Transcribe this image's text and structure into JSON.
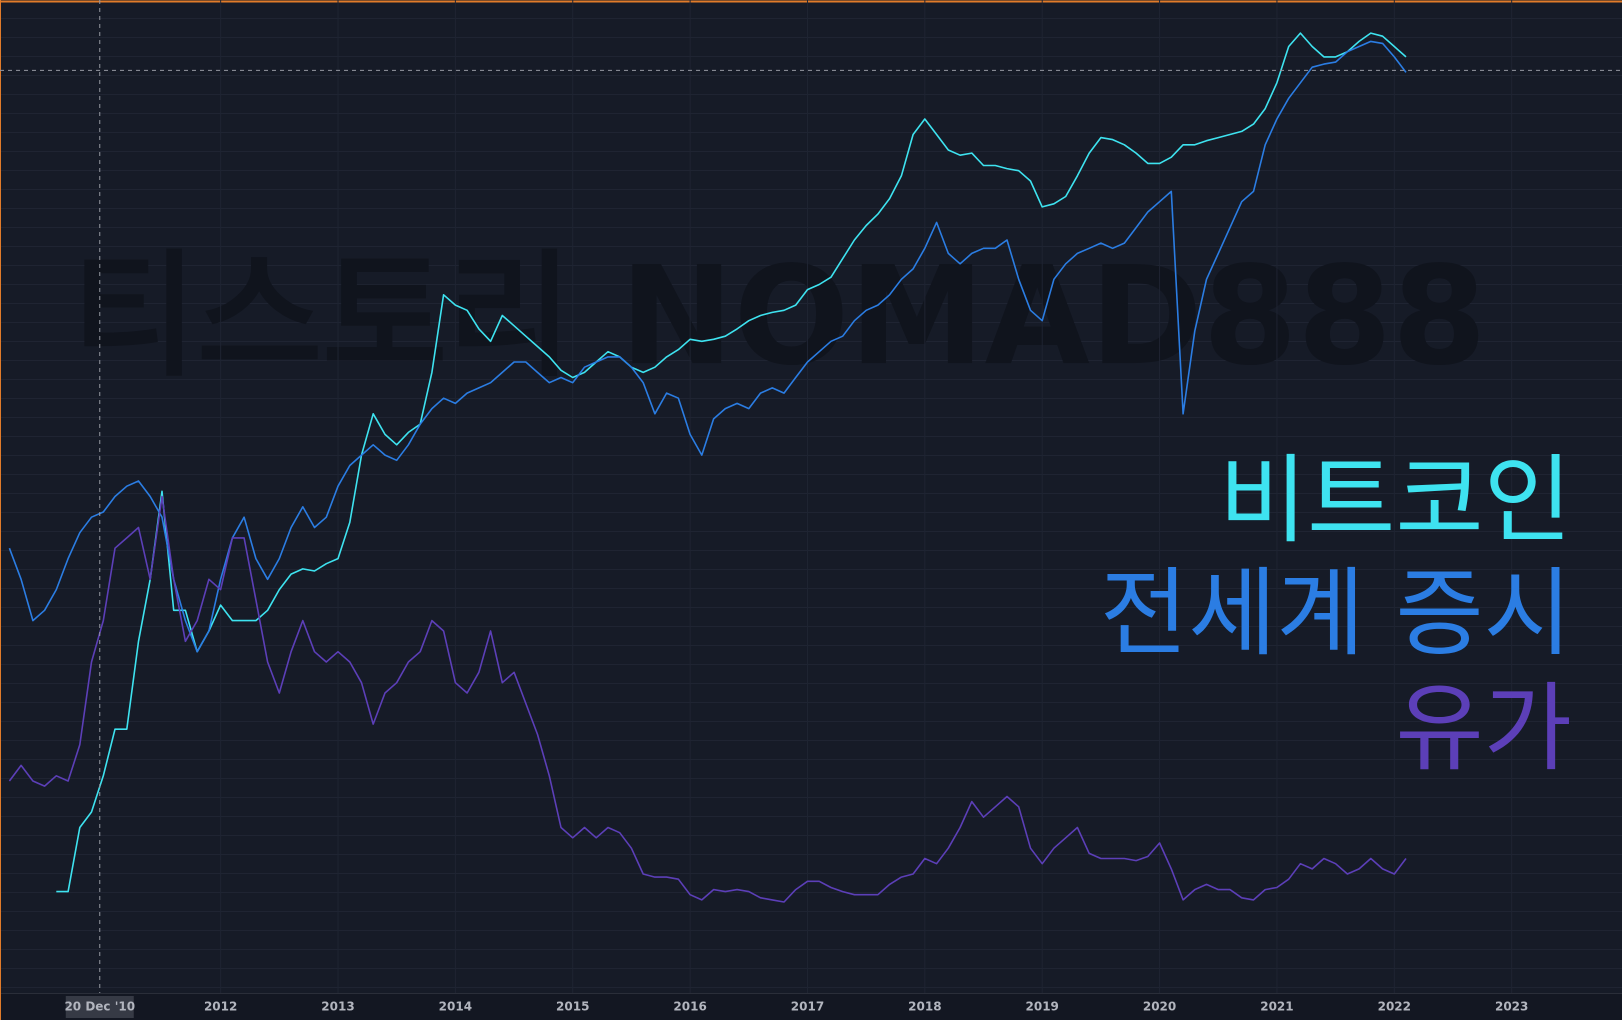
{
  "chart_data": {
    "type": "line",
    "watermark": "티스토리 NOMAD888",
    "crosshair": {
      "x": 2010.97,
      "x_label": "20 Dec '10",
      "y": 89.2
    },
    "xlim": [
      2010.12,
      2023.94
    ],
    "ylim": [
      0,
      96
    ],
    "xticks": [
      2012,
      2013,
      2014,
      2015,
      2016,
      2017,
      2018,
      2019,
      2020,
      2021,
      2022,
      2023
    ],
    "grid": true,
    "x": [
      2010.2,
      2010.3,
      2010.4,
      2010.5,
      2010.6,
      2010.7,
      2010.8,
      2010.9,
      2011.0,
      2011.1,
      2011.2,
      2011.3,
      2011.4,
      2011.5,
      2011.6,
      2011.7,
      2011.8,
      2011.9,
      2012.0,
      2012.1,
      2012.2,
      2012.3,
      2012.4,
      2012.5,
      2012.6,
      2012.7,
      2012.8,
      2012.9,
      2013.0,
      2013.1,
      2013.2,
      2013.3,
      2013.4,
      2013.5,
      2013.6,
      2013.7,
      2013.8,
      2013.9,
      2014.0,
      2014.1,
      2014.2,
      2014.3,
      2014.4,
      2014.5,
      2014.6,
      2014.7,
      2014.8,
      2014.9,
      2015.0,
      2015.1,
      2015.2,
      2015.3,
      2015.4,
      2015.5,
      2015.6,
      2015.7,
      2015.8,
      2015.9,
      2016.0,
      2016.1,
      2016.2,
      2016.3,
      2016.4,
      2016.5,
      2016.6,
      2016.7,
      2016.8,
      2016.9,
      2017.0,
      2017.1,
      2017.2,
      2017.3,
      2017.4,
      2017.5,
      2017.6,
      2017.7,
      2017.8,
      2017.9,
      2018.0,
      2018.1,
      2018.2,
      2018.3,
      2018.4,
      2018.5,
      2018.6,
      2018.7,
      2018.8,
      2018.9,
      2019.0,
      2019.1,
      2019.2,
      2019.3,
      2019.4,
      2019.5,
      2019.6,
      2019.7,
      2019.8,
      2019.9,
      2020.0,
      2020.1,
      2020.2,
      2020.3,
      2020.4,
      2020.5,
      2020.6,
      2020.7,
      2020.8,
      2020.9,
      2021.0,
      2021.1,
      2021.2,
      2021.3,
      2021.4,
      2021.5,
      2021.6,
      2021.7,
      2021.8,
      2021.9,
      2022.0,
      2022.1
    ],
    "series": [
      {
        "name": "비트코인",
        "color": "#3ee3f0",
        "values": [
          null,
          null,
          null,
          null,
          9.8,
          9.8,
          16,
          17.5,
          21,
          25.5,
          25.5,
          34,
          40,
          48.5,
          37,
          37,
          33,
          35,
          37.5,
          36,
          36,
          36,
          37,
          39,
          40.5,
          41,
          40.8,
          41.5,
          42,
          45.5,
          52,
          56,
          54,
          53,
          54.2,
          55,
          60,
          67.5,
          66.5,
          66,
          64.2,
          63,
          65.5,
          64.5,
          63.5,
          62.5,
          61.5,
          60.2,
          59.5,
          60,
          61,
          62,
          61.5,
          60.5,
          60,
          60.5,
          61.5,
          62.2,
          63.2,
          63,
          63.2,
          63.5,
          64.2,
          65,
          65.5,
          65.8,
          66,
          66.5,
          68,
          68.5,
          69.2,
          71,
          72.8,
          74.2,
          75.3,
          76.8,
          79,
          83,
          84.5,
          83,
          81.5,
          81,
          81.2,
          80,
          80,
          79.7,
          79.5,
          78.5,
          76,
          76.3,
          77,
          79,
          81.2,
          82.7,
          82.5,
          82,
          81.2,
          80.2,
          80.2,
          80.8,
          82,
          82,
          82.4,
          82.7,
          83,
          83.3,
          84,
          85.5,
          88,
          91.5,
          92.8,
          91.5,
          90.5,
          90.5,
          91,
          92,
          92.8,
          92.5,
          91.5,
          90.5
        ]
      },
      {
        "name": "전세계 증시",
        "color": "#2b7de3",
        "values": [
          43,
          40,
          36,
          37,
          39,
          42,
          44.5,
          46,
          46.5,
          48,
          49,
          49.5,
          48,
          46,
          40,
          36,
          33,
          35,
          40,
          44,
          46,
          42,
          40,
          42,
          45,
          47,
          45,
          46,
          49,
          51,
          52,
          53,
          52,
          51.5,
          53,
          55,
          56.5,
          57.5,
          57,
          58,
          58.5,
          59,
          60,
          61,
          61,
          60,
          59,
          59.5,
          59,
          60.5,
          61,
          61.5,
          61.5,
          60.5,
          59,
          56,
          58,
          57.5,
          54,
          52,
          55.5,
          56.5,
          57,
          56.5,
          58,
          58.5,
          58,
          59.5,
          61,
          62,
          63,
          63.5,
          65,
          66,
          66.5,
          67.5,
          69,
          70,
          72,
          74.5,
          71.5,
          70.5,
          71.5,
          72,
          72,
          72.8,
          69,
          66,
          65,
          69,
          70.5,
          71.5,
          72,
          72.5,
          72,
          72.5,
          74,
          75.5,
          76.5,
          77.5,
          56,
          64,
          69,
          71.5,
          74,
          76.5,
          77.5,
          82,
          84.5,
          86.5,
          88,
          89.5,
          89.8,
          90,
          91,
          91.5,
          92,
          91.8,
          90.5,
          89
        ]
      },
      {
        "name": "유가",
        "color": "#5c3fb8",
        "values": [
          20.5,
          22,
          20.5,
          20,
          21,
          20.5,
          24,
          32,
          36,
          43,
          44,
          45,
          40,
          48,
          40,
          34,
          36,
          40,
          39,
          44,
          44,
          38,
          32,
          29,
          33,
          36,
          33,
          32,
          33,
          32,
          30,
          26,
          29,
          30,
          32,
          33,
          36,
          35,
          30,
          29,
          31,
          35,
          30,
          31,
          28,
          25,
          21,
          16,
          15,
          16,
          15,
          16,
          15.5,
          14,
          11.5,
          11.2,
          11.2,
          11,
          9.5,
          9,
          10,
          9.8,
          10,
          9.8,
          9.2,
          9,
          8.8,
          10,
          10.8,
          10.8,
          10.2,
          9.8,
          9.5,
          9.5,
          9.5,
          10.5,
          11.2,
          11.5,
          13,
          12.5,
          14,
          16,
          18.5,
          17,
          18,
          19,
          18,
          14,
          12.5,
          14,
          15,
          16,
          13.5,
          13,
          13,
          13,
          12.8,
          13.2,
          14.5,
          12,
          9,
          10,
          10.5,
          10,
          10,
          9.2,
          9,
          10,
          10.2,
          11,
          12.5,
          12,
          13,
          12.5,
          11.5,
          12,
          13,
          12,
          11.5,
          13
        ]
      }
    ]
  }
}
